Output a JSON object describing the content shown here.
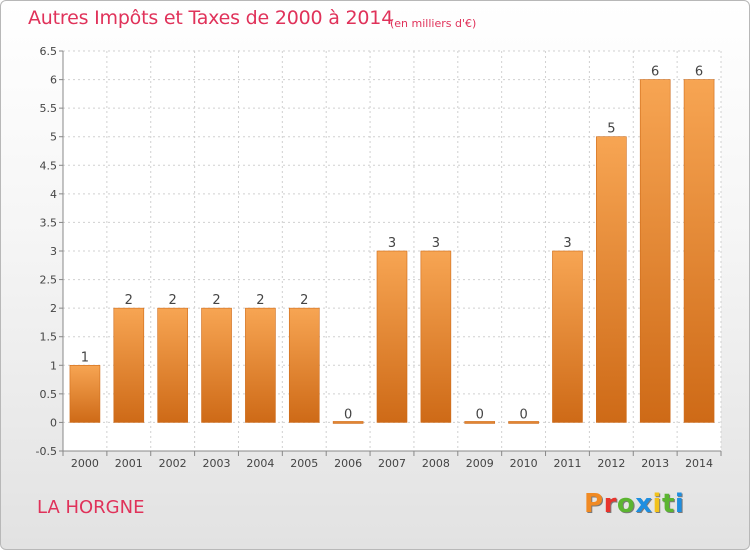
{
  "header": {
    "title": "Autres Impôts et Taxes de 2000 à 2014",
    "unit": "(en milliers d'€)"
  },
  "footer": {
    "commune": "LA HORGNE",
    "brand": "Proxiti"
  },
  "colors": {
    "title": "#e0325a",
    "bar_light": "#f7a553",
    "bar_dark": "#ce6a17",
    "brand_letters": [
      "#f08a24",
      "#e8342c",
      "#5cb531",
      "#1f8fe0",
      "#f2c21b",
      "#5cb531",
      "#1f8fe0"
    ]
  },
  "chart_data": {
    "type": "bar",
    "title": "Autres Impôts et Taxes de 2000 à 2014",
    "subtitle": "(en milliers d'€)",
    "xlabel": "",
    "ylabel": "",
    "categories": [
      "2000",
      "2001",
      "2002",
      "2003",
      "2004",
      "2005",
      "2006",
      "2007",
      "2008",
      "2009",
      "2010",
      "2011",
      "2012",
      "2013",
      "2014"
    ],
    "values": [
      1,
      2,
      2,
      2,
      2,
      2,
      0,
      3,
      3,
      0,
      0,
      3,
      5,
      6,
      6
    ],
    "data_labels": [
      "1",
      "2",
      "2",
      "2",
      "2",
      "2",
      "0",
      "3",
      "3",
      "0",
      "0",
      "3",
      "5",
      "6",
      "6"
    ],
    "ylim": [
      -0.5,
      6.5
    ],
    "yticks": [
      "-0.5",
      "0",
      "0.5",
      "1",
      "1.5",
      "2",
      "2.5",
      "3",
      "3.5",
      "4",
      "4.5",
      "5",
      "5.5",
      "6",
      "6.5"
    ],
    "grid": true
  }
}
